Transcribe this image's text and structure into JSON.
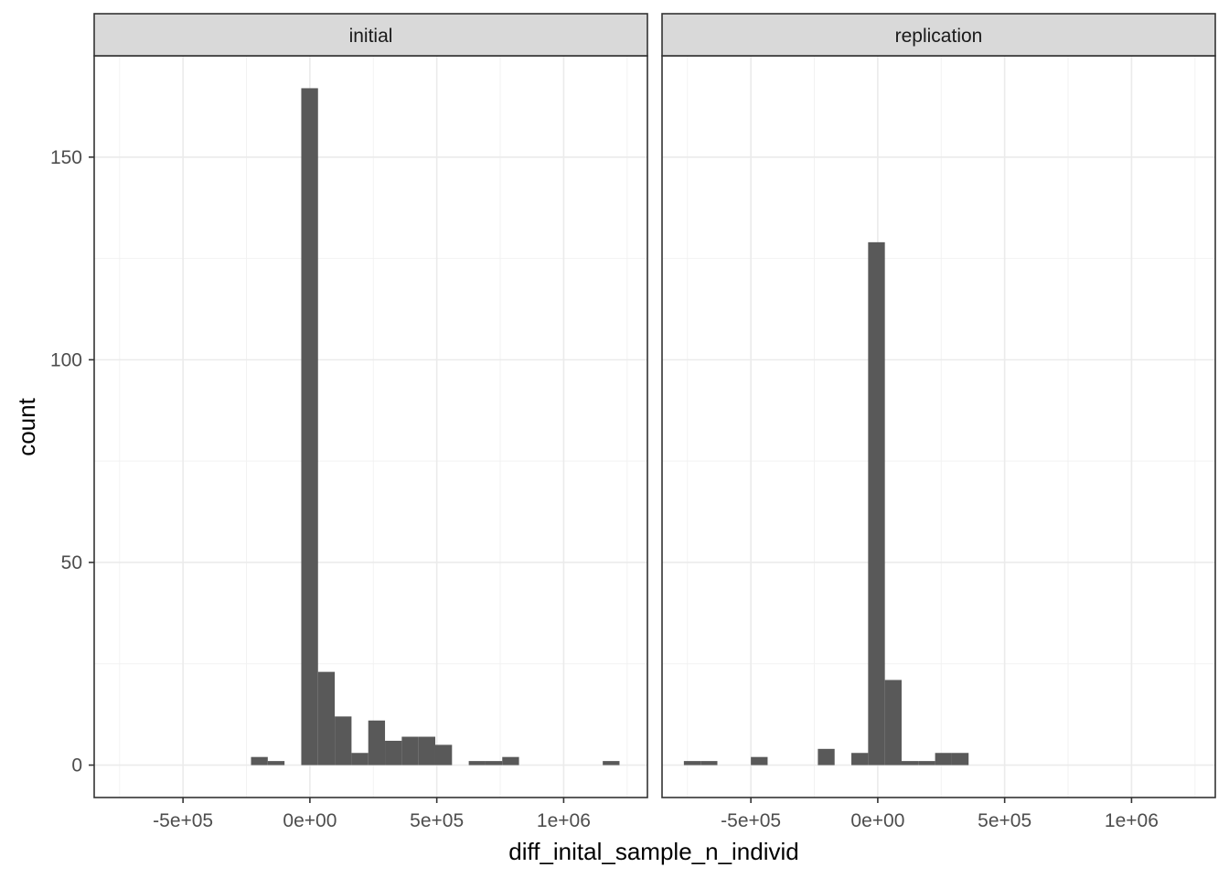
{
  "chart_data": {
    "type": "bar",
    "histogram": true,
    "xlabel": "diff_inital_sample_n_individ",
    "ylabel": "count",
    "xlim": [
      -850000,
      1330000
    ],
    "ylim": [
      -8,
      175
    ],
    "x_ticks": [
      {
        "value": -500000,
        "label": "-5e+05"
      },
      {
        "value": 0,
        "label": "0e+00"
      },
      {
        "value": 500000,
        "label": "5e+05"
      },
      {
        "value": 1000000,
        "label": "1e+06"
      }
    ],
    "y_ticks": [
      {
        "value": 0,
        "label": "0"
      },
      {
        "value": 50,
        "label": "50"
      },
      {
        "value": 100,
        "label": "100"
      },
      {
        "value": 150,
        "label": "150"
      }
    ],
    "grid": true,
    "bar_color": "#595959",
    "panels": [
      {
        "name": "initial",
        "bins": [
          {
            "x0": -232000,
            "x1": -166000,
            "count": 2
          },
          {
            "x0": -166000,
            "x1": -100000,
            "count": 1
          },
          {
            "x0": -34000,
            "x1": 32000,
            "count": 167
          },
          {
            "x0": 32000,
            "x1": 98000,
            "count": 23
          },
          {
            "x0": 98000,
            "x1": 164000,
            "count": 12
          },
          {
            "x0": 164000,
            "x1": 230000,
            "count": 3
          },
          {
            "x0": 230000,
            "x1": 296000,
            "count": 11
          },
          {
            "x0": 296000,
            "x1": 362000,
            "count": 6
          },
          {
            "x0": 362000,
            "x1": 428000,
            "count": 7
          },
          {
            "x0": 428000,
            "x1": 494000,
            "count": 7
          },
          {
            "x0": 494000,
            "x1": 560000,
            "count": 5
          },
          {
            "x0": 626000,
            "x1": 692000,
            "count": 1
          },
          {
            "x0": 692000,
            "x1": 758000,
            "count": 1
          },
          {
            "x0": 758000,
            "x1": 824000,
            "count": 2
          },
          {
            "x0": 1154000,
            "x1": 1220000,
            "count": 1
          }
        ]
      },
      {
        "name": "replication",
        "bins": [
          {
            "x0": -764000,
            "x1": -698000,
            "count": 1
          },
          {
            "x0": -698000,
            "x1": -632000,
            "count": 1
          },
          {
            "x0": -500000,
            "x1": -434000,
            "count": 2
          },
          {
            "x0": -236000,
            "x1": -170000,
            "count": 4
          },
          {
            "x0": -104000,
            "x1": -38000,
            "count": 3
          },
          {
            "x0": -38000,
            "x1": 28000,
            "count": 129
          },
          {
            "x0": 28000,
            "x1": 94000,
            "count": 21
          },
          {
            "x0": 94000,
            "x1": 160000,
            "count": 1
          },
          {
            "x0": 160000,
            "x1": 226000,
            "count": 1
          },
          {
            "x0": 226000,
            "x1": 292000,
            "count": 3
          },
          {
            "x0": 292000,
            "x1": 358000,
            "count": 3
          }
        ]
      }
    ]
  }
}
